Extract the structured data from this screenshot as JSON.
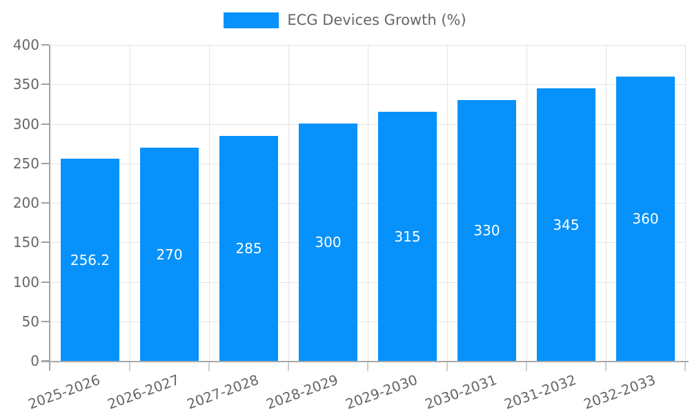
{
  "legend": {
    "label": "ECG Devices Growth (%)"
  },
  "chart_data": {
    "type": "bar",
    "title": "",
    "legend_entries": [
      "ECG Devices Growth (%)"
    ],
    "legend_position": "top-center",
    "categories": [
      "2025-2026",
      "2026-2027",
      "2027-2028",
      "2028-2029",
      "2029-2030",
      "2030-2031",
      "2031-2032",
      "2032-2033"
    ],
    "series": [
      {
        "name": "ECG Devices Growth (%)",
        "values": [
          256.2,
          270,
          285,
          300,
          315,
          330,
          345,
          360
        ]
      }
    ],
    "value_labels": [
      "256.2",
      "270",
      "285",
      "300",
      "315",
      "330",
      "345",
      "360"
    ],
    "value_labels_position": "inside-center",
    "xlabel": "",
    "ylabel": "",
    "ylim": [
      0,
      400
    ],
    "yticks": [
      0,
      50,
      100,
      150,
      200,
      250,
      300,
      350,
      400
    ],
    "grid": true,
    "x_label_rotation_deg": -20,
    "colors": {
      "bar": "#0692fa",
      "value_label": "#ffffff",
      "axis_text": "#666666",
      "axis_line": "#a0a0a0",
      "grid_line": "#e4e4e4",
      "boundary_tick": "#cccccc",
      "legend_text": "#666666"
    }
  }
}
